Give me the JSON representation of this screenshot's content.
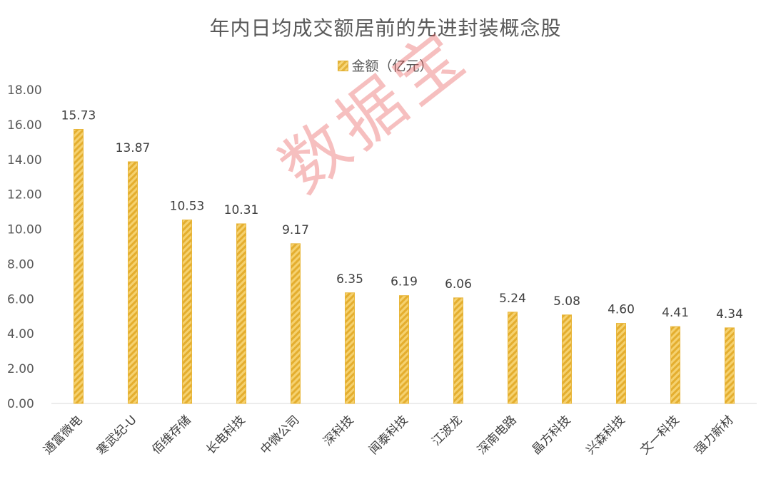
{
  "chart_data": {
    "type": "bar",
    "title": "年内日均成交额居前的先进封装概念股",
    "categories": [
      "通富微电",
      "寒武纪-U",
      "佰维存储",
      "长电科技",
      "中微公司",
      "深科技",
      "闻泰科技",
      "江波龙",
      "深南电路",
      "晶方科技",
      "兴森科技",
      "文一科技",
      "强力新材"
    ],
    "series": [
      {
        "name": "金额（亿元）",
        "values": [
          15.73,
          13.87,
          10.53,
          10.31,
          9.17,
          6.35,
          6.19,
          6.06,
          5.24,
          5.08,
          4.6,
          4.41,
          4.34
        ]
      }
    ],
    "data_labels": [
      "15.73",
      "13.87",
      "10.53",
      "10.31",
      "9.17",
      "6.35",
      "6.19",
      "6.06",
      "5.24",
      "5.08",
      "4.60",
      "4.41",
      "4.34"
    ],
    "y_ticks": [
      "0.00",
      "2.00",
      "4.00",
      "6.00",
      "8.00",
      "10.00",
      "12.00",
      "14.00",
      "16.00",
      "18.00"
    ],
    "ylim": [
      0,
      18
    ],
    "legend_position": "top-center",
    "grid": false,
    "bar_color": "#e8b63a"
  },
  "watermark": "数据宝"
}
